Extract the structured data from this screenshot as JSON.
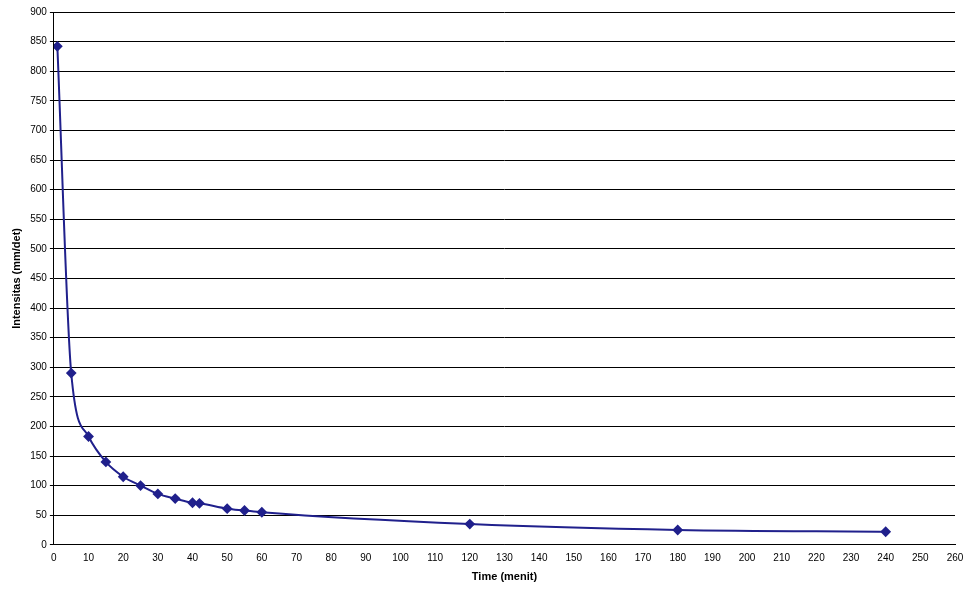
{
  "chart_data": {
    "type": "line",
    "x_label": "Time (menit)",
    "y_label": "Intensitas (mm/det)",
    "x": [
      1,
      5,
      10,
      15,
      20,
      25,
      30,
      35,
      40,
      42,
      50,
      55,
      60,
      120,
      180,
      240
    ],
    "values": [
      842,
      290,
      183,
      140,
      115,
      100,
      86,
      78,
      71,
      70,
      61,
      58,
      55,
      35,
      25,
      22
    ],
    "color": "#20208c",
    "marker": "diamond",
    "line_style": "solid",
    "xlim": [
      0,
      260
    ],
    "xticks": [
      0,
      10,
      20,
      30,
      40,
      50,
      60,
      70,
      80,
      90,
      100,
      110,
      120,
      130,
      140,
      150,
      160,
      170,
      180,
      190,
      200,
      210,
      220,
      230,
      240,
      250,
      260
    ],
    "ylim": [
      0,
      900
    ],
    "yticks": [
      0,
      50,
      100,
      150,
      200,
      250,
      300,
      350,
      400,
      450,
      500,
      550,
      600,
      650,
      700,
      750,
      800,
      850,
      900
    ],
    "grid": "y"
  }
}
